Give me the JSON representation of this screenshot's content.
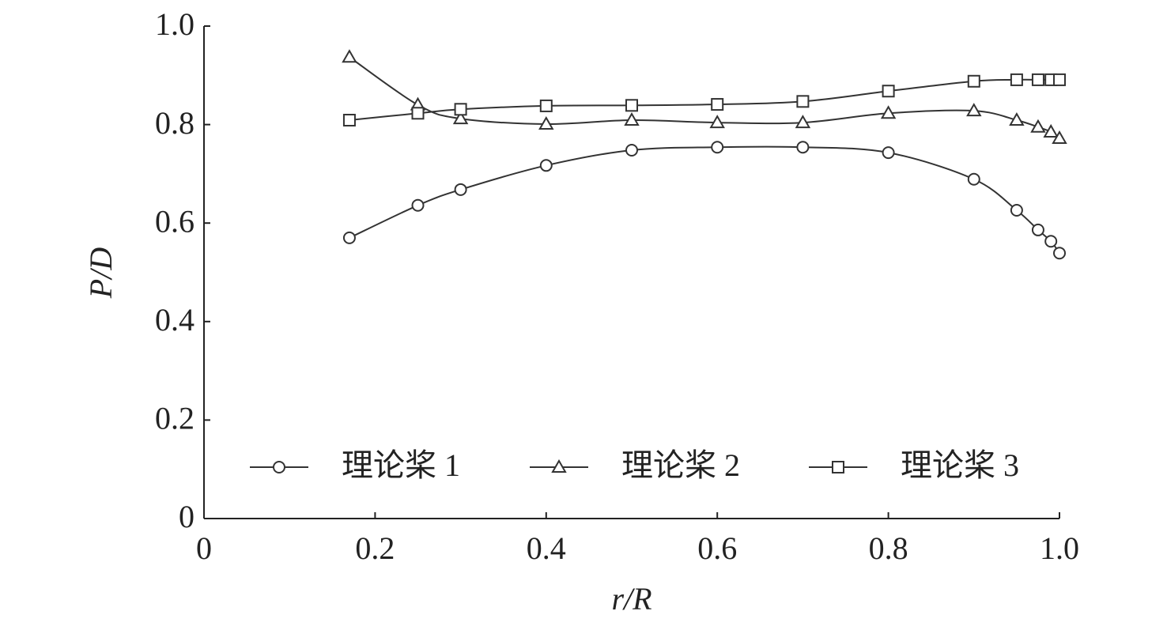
{
  "chart_data": {
    "type": "line",
    "xlabel": "r/R",
    "ylabel": "P/D",
    "x": [
      0.17,
      0.25,
      0.3,
      0.4,
      0.5,
      0.6,
      0.7,
      0.8,
      0.9,
      0.95,
      0.975,
      0.99,
      1.0
    ],
    "series": [
      {
        "name": "理论桨 1",
        "color": "#333333",
        "marker": "circle",
        "values": [
          0.57,
          0.636,
          0.668,
          0.717,
          0.748,
          0.754,
          0.754,
          0.743,
          0.689,
          0.626,
          0.586,
          0.563,
          0.539
        ]
      },
      {
        "name": "理论桨 2",
        "color": "#333333",
        "marker": "triangle",
        "values": [
          0.937,
          0.84,
          0.812,
          0.801,
          0.809,
          0.804,
          0.804,
          0.823,
          0.828,
          0.809,
          0.795,
          0.785,
          0.772
        ]
      },
      {
        "name": "理论桨 3",
        "color": "#333333",
        "marker": "square",
        "values": [
          0.809,
          0.823,
          0.831,
          0.838,
          0.839,
          0.841,
          0.847,
          0.868,
          0.888,
          0.891,
          0.891,
          0.891,
          0.891
        ]
      }
    ],
    "xlim": [
      0,
      1
    ],
    "xticks": [
      0,
      0.2,
      0.4,
      0.6,
      0.8,
      {
        "value": 1,
        "label": "1.0"
      }
    ],
    "ylim": [
      0,
      1
    ],
    "yticks": [
      0,
      0.2,
      0.4,
      0.6,
      0.8,
      {
        "value": 1,
        "label": "1.0"
      }
    ],
    "grid": false,
    "legend": "lower center"
  }
}
